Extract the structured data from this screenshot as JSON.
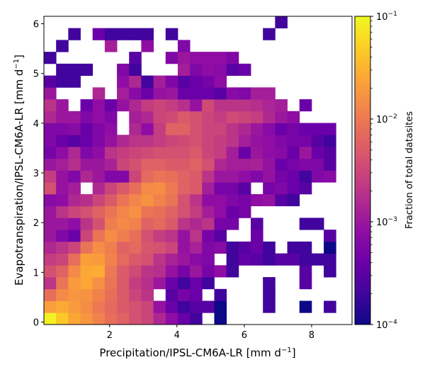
{
  "chart_data": {
    "type": "heatmap",
    "title": "",
    "xlabel_main": "Precipitation/IPSL-CM6A-LR [mm d",
    "xlabel_sup": "−1",
    "xlabel_close": "]",
    "ylabel_main": "Evapotranspiration/IPSL-CM6A-LR [mm d",
    "ylabel_sup": "−1",
    "ylabel_close": "]",
    "xlim": [
      0.05,
      9.2
    ],
    "ylim": [
      -0.05,
      6.15
    ],
    "x_ticks": [
      2,
      4,
      6,
      8
    ],
    "y_ticks": [
      0,
      1,
      2,
      3,
      4,
      5,
      6
    ],
    "bins": {
      "x_start": 0.05,
      "x_width": 0.3613,
      "y_start": -0.05,
      "y_width": 0.2385,
      "nx": 24,
      "ny": 26
    },
    "colorbar": {
      "label": "Fraction of total datasites",
      "scale": "log",
      "min": 0.0001,
      "max": 0.1,
      "cmap": "plasma",
      "ticks": [
        {
          "value": 0.1,
          "base": "10",
          "exp": "−1"
        },
        {
          "value": 0.01,
          "base": "10",
          "exp": "−2"
        },
        {
          "value": 0.001,
          "base": "10",
          "exp": "−3"
        },
        {
          "value": 0.0001,
          "base": "10",
          "exp": "−4"
        }
      ]
    },
    "rows": [
      [
        0.09,
        0.045,
        0.025,
        0.018,
        0.012,
        0.008,
        0.006,
        0.004,
        0.003,
        0.0015,
        0.0008,
        0.0004,
        0.0002,
        0,
        0.0001,
        0,
        0,
        0,
        0,
        0,
        0,
        0,
        0,
        0
      ],
      [
        0.022,
        0.026,
        0.02,
        0.015,
        0.01,
        0.007,
        0.005,
        0.004,
        0.003,
        0.0009,
        0.0004,
        0.0002,
        0.0003,
        0.0003,
        0.0001,
        0,
        0,
        0,
        0.0002,
        0,
        0,
        0.0001,
        0,
        0.0002
      ],
      [
        0.008,
        0.014,
        0.018,
        0.017,
        0.012,
        0.008,
        0.005,
        0.003,
        0.002,
        0,
        0.0003,
        0.0005,
        0.0004,
        0,
        0.0002,
        0,
        0,
        0,
        0.0002,
        0,
        0,
        0,
        0,
        0
      ],
      [
        0.002,
        0.009,
        0.02,
        0.025,
        0.016,
        0.009,
        0.005,
        0.0025,
        0.0018,
        0.001,
        0.0004,
        0.0002,
        0.0004,
        0.0002,
        0,
        0,
        0,
        0,
        0.0002,
        0,
        0,
        0.0003,
        0,
        0
      ],
      [
        0.004,
        0.006,
        0.014,
        0.026,
        0.028,
        0.01,
        0.005,
        0.0035,
        0.002,
        0.0018,
        0.0009,
        0.0005,
        0.001,
        0.0005,
        0.0008,
        0.0002,
        0,
        0,
        0,
        0,
        0,
        0.0003,
        0,
        0.0002
      ],
      [
        0.0025,
        0.003,
        0.008,
        0.022,
        0.02,
        0.012,
        0.007,
        0.005,
        0.004,
        0.002,
        0.0013,
        0.001,
        0.0007,
        0.0006,
        0,
        0.0002,
        0.00035,
        0.0003,
        0.0002,
        0.0003,
        0.0003,
        0.0002,
        0.0002,
        0.0002
      ],
      [
        0.0015,
        0.002,
        0.003,
        0.009,
        0.015,
        0.011,
        0.006,
        0.007,
        0.0045,
        0.004,
        0.003,
        0.0009,
        0.0013,
        0.0006,
        0.0007,
        0.0002,
        0.0003,
        0.0004,
        0.0002,
        0,
        0.0002,
        0.0002,
        0,
        0.0001
      ],
      [
        0.001,
        0.0006,
        0.0004,
        0.003,
        0.009,
        0.015,
        0.011,
        0.008,
        0.004,
        0.0025,
        0.002,
        0.0009,
        0.002,
        0.0005,
        0.0003,
        0,
        0,
        0.0004,
        0,
        0,
        0,
        0,
        0,
        0.0003
      ],
      [
        0.001,
        0.001,
        0.0008,
        0.002,
        0.004,
        0.011,
        0.014,
        0.012,
        0.006,
        0.007,
        0.005,
        0.002,
        0.0015,
        0.002,
        0.0005,
        0.0005,
        0,
        0.0003,
        0,
        0,
        0,
        0.0002,
        0.0002,
        0
      ],
      [
        0.001,
        0.002,
        0.003,
        0.004,
        0.006,
        0.009,
        0.013,
        0.016,
        0.009,
        0.008,
        0.006,
        0.004,
        0.0025,
        0.0012,
        0.0008,
        0.0004,
        0.0005,
        0,
        0,
        0,
        0,
        0,
        0,
        0
      ],
      [
        0.0007,
        0.0008,
        0.0015,
        0.0018,
        0.003,
        0.005,
        0.009,
        0.013,
        0.017,
        0.012,
        0.009,
        0.004,
        0.002,
        0.0008,
        0.0008,
        0.0006,
        0.0005,
        0.0008,
        0.0009,
        0.0003,
        0.0002,
        0,
        0,
        0
      ],
      [
        0.004,
        0.0009,
        0.0012,
        0,
        0.0015,
        0.003,
        0.005,
        0.008,
        0.014,
        0.015,
        0.01,
        0.006,
        0.005,
        0.0012,
        0.0005,
        0.0005,
        0.0003,
        0,
        0.0005,
        0.0006,
        0.0004,
        0.0003,
        0,
        0
      ],
      [
        0.0025,
        0.0009,
        0.0006,
        0.0015,
        0.001,
        0.0006,
        0.0006,
        0.003,
        0.007,
        0.009,
        0.008,
        0.006,
        0.005,
        0.002,
        0.001,
        0.001,
        0.0008,
        0.0006,
        0.0009,
        0.0005,
        0.0004,
        0.0002,
        0.0006,
        0.0007
      ],
      [
        0.001,
        0.0012,
        0.0018,
        0.001,
        0.001,
        0.0013,
        0.003,
        0.004,
        0.006,
        0.006,
        0.005,
        0.005,
        0.006,
        0.004,
        0.0015,
        0.0012,
        0.0012,
        0.0013,
        0.0009,
        0.0004,
        0.0005,
        0.0006,
        0.0006,
        0.0003
      ],
      [
        0.0005,
        0.0008,
        0.0015,
        0.0006,
        0.0008,
        0.002,
        0.0025,
        0.003,
        0.0035,
        0.004,
        0.004,
        0.004,
        0.005,
        0.003,
        0.0025,
        0.0012,
        0.0004,
        0.001,
        0.0008,
        0.0007,
        0.0004,
        0.001,
        0.0004,
        0.0003
      ],
      [
        0.0006,
        0.0004,
        0.0003,
        0.0004,
        0.0006,
        0.0009,
        0.0015,
        0.002,
        0.002,
        0.0025,
        0.003,
        0.0035,
        0.004,
        0.003,
        0.0025,
        0.002,
        0.0012,
        0.0009,
        0.0008,
        0.0006,
        0.0005,
        0.0005,
        0.0003,
        0.0002
      ],
      [
        0.0006,
        0.0006,
        0.0007,
        0.0004,
        0.0006,
        0.0008,
        0,
        0.0015,
        0.0008,
        0.0025,
        0.006,
        0.006,
        0.004,
        0.003,
        0.003,
        0.002,
        0.0015,
        0.001,
        0.0007,
        0.0004,
        0.0005,
        0.0004,
        0.0004,
        0.0004
      ],
      [
        0.0015,
        0.001,
        0.001,
        0.0006,
        0.0008,
        0.0006,
        0,
        0.0012,
        0.0015,
        0.003,
        0.0035,
        0.005,
        0.004,
        0.003,
        0.0025,
        0.0035,
        0.003,
        0.0025,
        0.0015,
        0.001,
        0.0008,
        0,
        0,
        0
      ],
      [
        0.002,
        0.001,
        0,
        0.0004,
        0.0008,
        0.0004,
        0.0009,
        0.0015,
        0.0025,
        0.003,
        0.0025,
        0.0018,
        0.0009,
        0.0035,
        0.002,
        0.002,
        0.002,
        0.0018,
        0.0014,
        0.0012,
        0,
        0.0004,
        0,
        0
      ],
      [
        0.001,
        0,
        0,
        0,
        0.0015,
        0,
        0.0012,
        0.0007,
        0.0004,
        0.0009,
        0.001,
        0.0004,
        0.0004,
        0.0004,
        0.0003,
        0.0007,
        0.0006,
        0.0012,
        0.0012,
        0,
        0,
        0,
        0,
        0
      ],
      [
        0.0003,
        0.0002,
        0.0002,
        0,
        0,
        0,
        0.0008,
        0.0015,
        0.0002,
        0.0012,
        0.0006,
        0.0003,
        0.0004,
        0.0005,
        0.0008,
        0,
        0,
        0,
        0,
        0,
        0,
        0,
        0,
        0
      ],
      [
        0,
        0.0002,
        0.0002,
        0.0002,
        0,
        0,
        0.0006,
        0.0002,
        0,
        0,
        0,
        0.0012,
        0.0006,
        0.0008,
        0.0007,
        0.0003,
        0.0004,
        0,
        0,
        0,
        0,
        0,
        0,
        0
      ],
      [
        0.0002,
        0,
        0,
        0,
        0,
        0,
        0,
        0.0003,
        0,
        0,
        0.0006,
        0.001,
        0.0008,
        0.0008,
        0.0008,
        0.0006,
        0,
        0,
        0,
        0,
        0,
        0,
        0,
        0
      ],
      [
        0,
        0.0002,
        0,
        0,
        0,
        0.0012,
        0,
        0,
        0.0008,
        0,
        0,
        0.0006,
        0,
        0,
        0,
        0,
        0,
        0,
        0,
        0,
        0,
        0,
        0,
        0
      ],
      [
        0,
        0,
        0.0002,
        0,
        0.0004,
        0.0002,
        0.0002,
        0.0002,
        0.0002,
        0,
        0.0002,
        0,
        0,
        0,
        0,
        0,
        0,
        0,
        0.0002,
        0,
        0,
        0,
        0,
        0
      ],
      [
        0,
        0,
        0,
        0,
        0,
        0,
        0,
        0,
        0,
        0,
        0,
        0,
        0,
        0,
        0,
        0,
        0,
        0,
        0,
        0.0002,
        0,
        0,
        0,
        0
      ]
    ]
  }
}
